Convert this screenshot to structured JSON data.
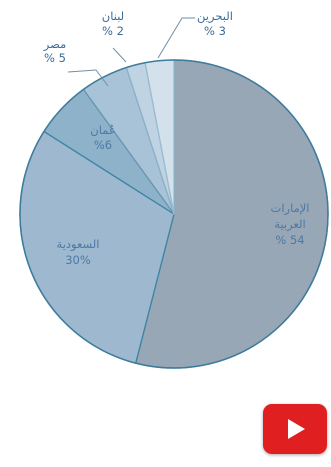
{
  "chart_data": {
    "type": "pie",
    "title": "",
    "slices": [
      {
        "label_lines": [
          "الإمارات",
          "العربية",
          "% 54"
        ],
        "value": 54,
        "color": "#98a7b6",
        "edge": "#3f6f8c",
        "label_color": "#4d79a3"
      },
      {
        "label_lines": [
          "السعودية",
          "30%"
        ],
        "value": 30,
        "color": "#9db8cf",
        "edge": "#3e86a5",
        "label_color": "#4d79a3"
      },
      {
        "label_lines": [
          "عُمان",
          "%6"
        ],
        "value": 6,
        "color": "#8fb2cb",
        "edge": "#3e86a5",
        "label_color": "#4d79a3"
      },
      {
        "label_lines": [
          "مصر",
          "% 5"
        ],
        "value": 5,
        "color": "#a8c3d8",
        "edge": "#6a97b0",
        "label_color": "#3a6d99"
      },
      {
        "label_lines": [
          "لبنان",
          "% 2"
        ],
        "value": 2,
        "color": "#bfd3e3",
        "edge": "#8eb1c6",
        "label_color": "#3a6d99"
      },
      {
        "label_lines": [
          "البحرين",
          "% 3"
        ],
        "value": 3,
        "color": "#d3e1ec",
        "edge": "#9bbcd0",
        "label_color": "#3a6d99"
      }
    ]
  },
  "play_button": {
    "icon": "play-icon",
    "color": "#e02020"
  }
}
